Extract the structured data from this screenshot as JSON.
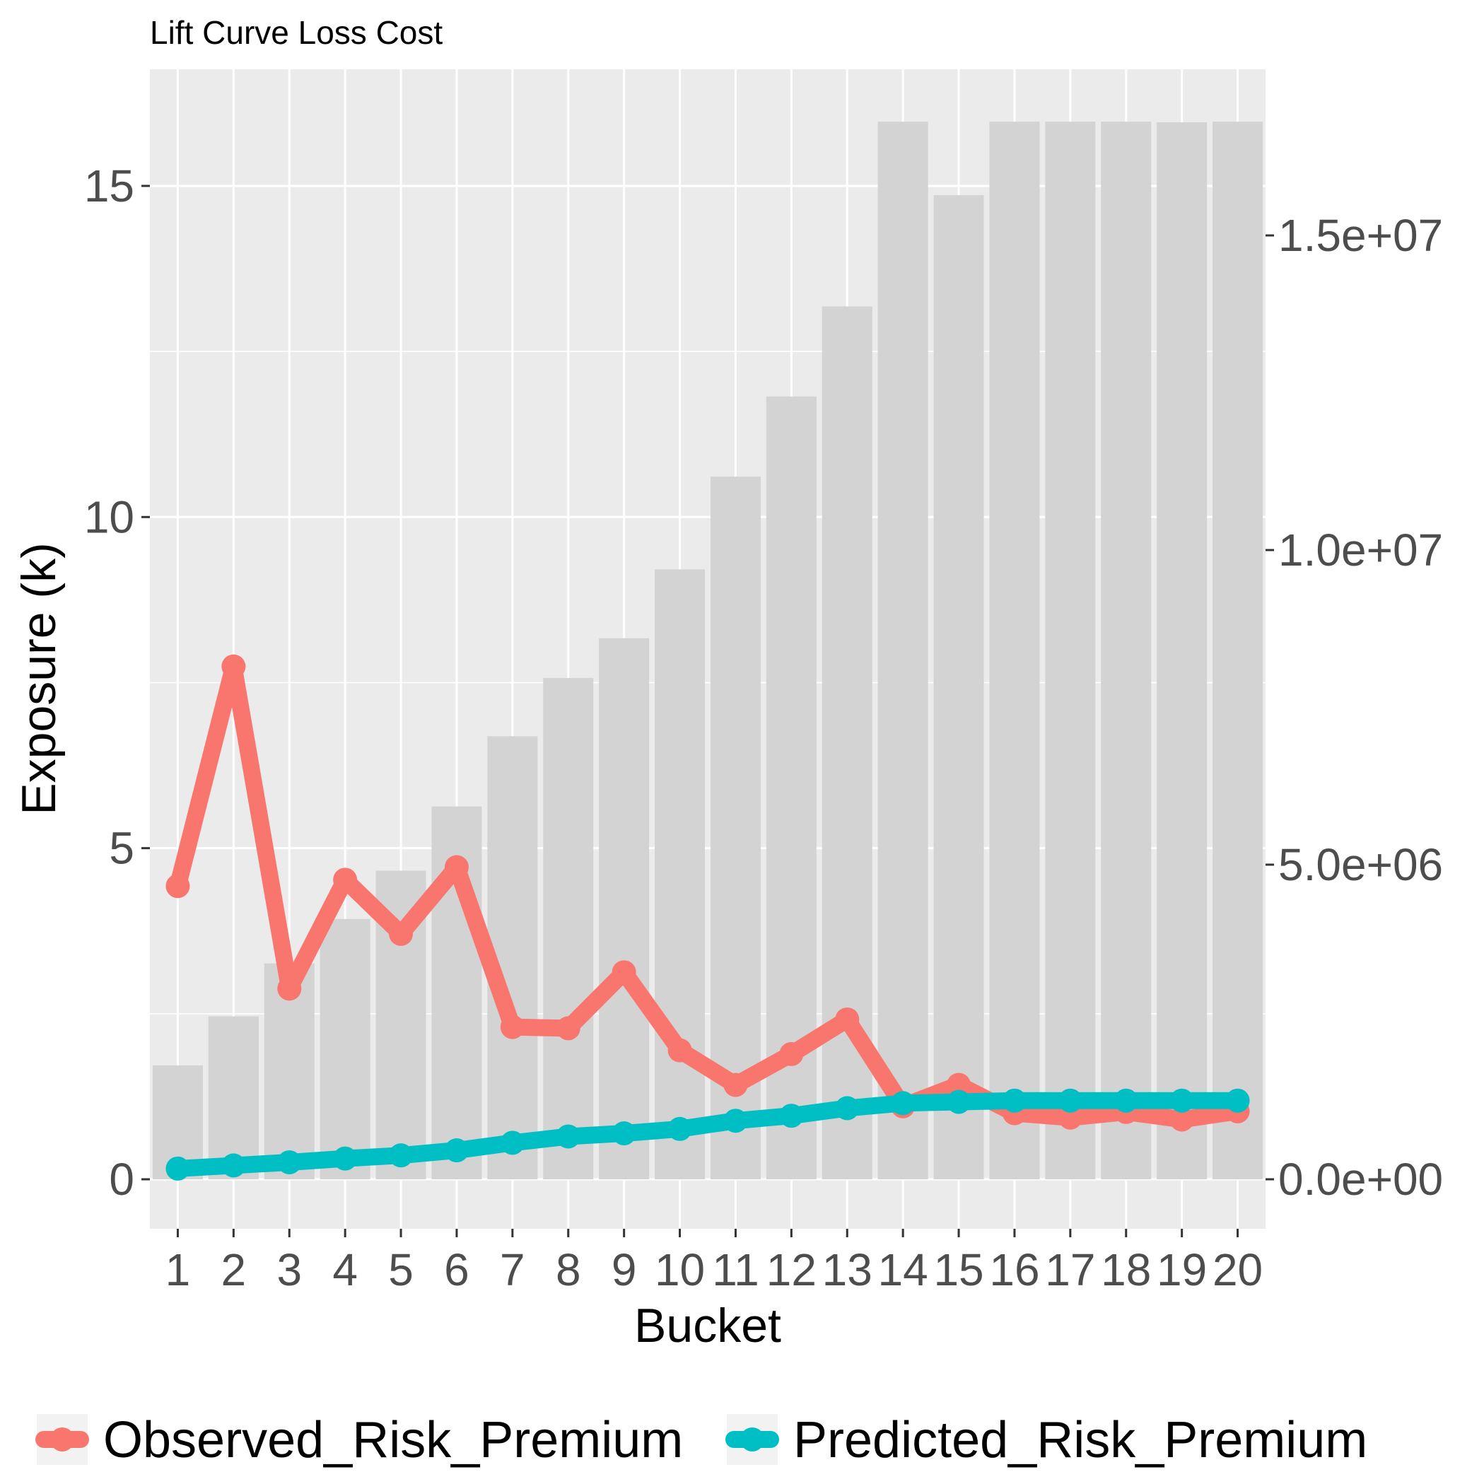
{
  "chart_data": {
    "type": "bar+line",
    "title": "Lift Curve Loss Cost",
    "xlabel": "Bucket",
    "ylabel": "Exposure (k)",
    "categories": [
      "1",
      "2",
      "3",
      "4",
      "5",
      "6",
      "7",
      "8",
      "9",
      "10",
      "11",
      "12",
      "13",
      "14",
      "15",
      "16",
      "17",
      "18",
      "19",
      "20"
    ],
    "bars": {
      "name": "Exposure (k)",
      "values": [
        1.72,
        2.46,
        3.26,
        3.93,
        4.66,
        5.63,
        6.69,
        7.57,
        8.17,
        9.21,
        10.61,
        11.82,
        13.18,
        15.97,
        14.86,
        15.97,
        15.97,
        15.97,
        15.96,
        15.97
      ],
      "color": "#d3d3d3"
    },
    "series": [
      {
        "name": "Observed_Risk_Premium",
        "color": "#f8766d",
        "values": [
          4660000.0,
          8150000.0,
          3030000.0,
          4760000.0,
          3900000.0,
          4960000.0,
          2420000.0,
          2400000.0,
          3290000.0,
          2050000.0,
          1500000.0,
          1990000.0,
          2540000.0,
          1160000.0,
          1500000.0,
          1050000.0,
          980000.0,
          1070000.0,
          950000.0,
          1080000.0
        ]
      },
      {
        "name": "Predicted_Risk_Premium",
        "color": "#00bfc4",
        "values": [
          170000.0,
          220000.0,
          270000.0,
          330000.0,
          380000.0,
          460000.0,
          580000.0,
          680000.0,
          730000.0,
          800000.0,
          930000.0,
          1010000.0,
          1130000.0,
          1210000.0,
          1230000.0,
          1250000.0,
          1250000.0,
          1250000.0,
          1250000.0,
          1250000.0
        ]
      }
    ],
    "y_left": {
      "ticks": [
        0,
        5,
        10,
        15
      ],
      "tick_labels": [
        "0",
        "5",
        "10",
        "15"
      ]
    },
    "y_right": {
      "ticks": [
        0,
        5000000,
        10000000,
        15000000
      ],
      "tick_labels": [
        "0.0e+00",
        "5.0e+06",
        "1.0e+07",
        "1.5e+07"
      ]
    },
    "grid": true,
    "legend_position": "bottom",
    "colors": {
      "panel": "#ebebeb",
      "grid": "#ffffff",
      "bar": "#d3d3d3"
    }
  }
}
